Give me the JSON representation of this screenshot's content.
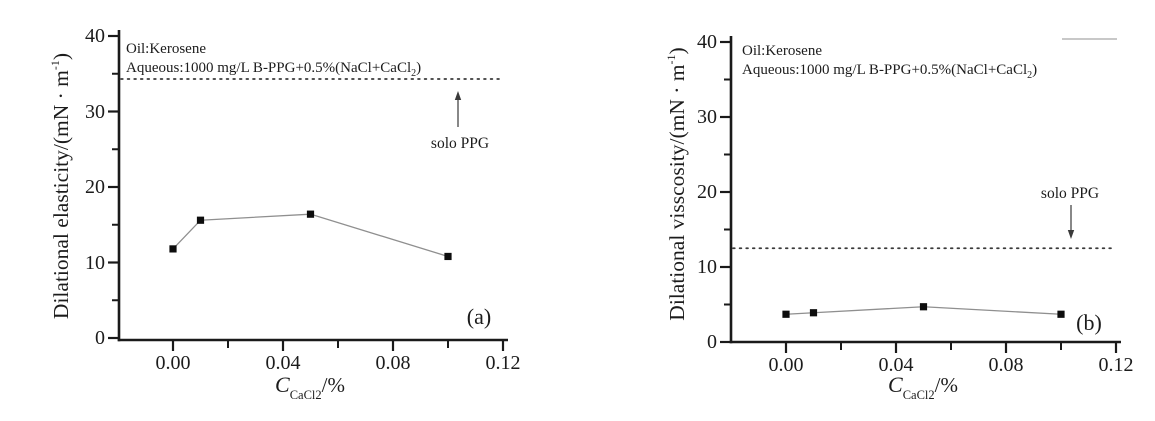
{
  "figure": {
    "background": "#ffffff",
    "colors": {
      "text": "#1c1c1c",
      "axis": "#1a1a1a",
      "series_line": "#8f8f8f",
      "marker": "#0d0d0d",
      "reference_line": "#3a3a3a",
      "legend_fragment": "#b5b5b5"
    },
    "charts": [
      {
        "panel_label": "(a)",
        "annotation_line1": "Oil:Kerosene",
        "annotation_line2_main": "Aqueous:1000 mg/L B-PPG+0.5%(NaCl+CaCl",
        "annotation_line2_sub": "2",
        "annotation_line2_end": ")",
        "ylabel_main": "Dilational elasticity/(mN · m",
        "ylabel_sup": "-1",
        "ylabel_end": ")",
        "xlabel_main": "C",
        "xlabel_sub": "CaCl2",
        "xlabel_end": "/%",
        "solo_ppg_label": "solo PPG",
        "ytick_labels": [
          "0",
          "10",
          "20",
          "30",
          "40"
        ],
        "xtick_labels": [
          "0.00",
          "0.04",
          "0.08",
          "0.12"
        ]
      },
      {
        "panel_label": "(b)",
        "annotation_line1": "Oil:Kerosene",
        "annotation_line2_main": "Aqueous:1000 mg/L B-PPG+0.5%(NaCl+CaCl",
        "annotation_line2_sub": "2",
        "annotation_line2_end": ")",
        "ylabel_main": "Dilational visscosity/(mN · m",
        "ylabel_sup": "-1",
        "ylabel_end": ")",
        "xlabel_main": "C",
        "xlabel_sub": "CaCl2",
        "xlabel_end": "/%",
        "solo_ppg_label": "solo PPG",
        "ytick_labels": [
          "0",
          "10",
          "20",
          "30",
          "40"
        ],
        "xtick_labels": [
          "0.00",
          "0.04",
          "0.08",
          "0.12"
        ]
      }
    ]
  },
  "chart_data": [
    {
      "type": "line",
      "panel": "(a)",
      "title": "",
      "xlabel": "C_CaCl2 /%",
      "ylabel": "Dilational elasticity/(mN·m^-1)",
      "series": [
        {
          "name": "1000 mg/L B-PPG+0.5%(NaCl+CaCl2)",
          "x": [
            0.0,
            0.01,
            0.05,
            0.1
          ],
          "y": [
            11.8,
            15.6,
            16.4,
            10.8
          ],
          "marker": "square"
        }
      ],
      "reference_line": {
        "label": "solo PPG",
        "value": 34.3,
        "style": "dotted"
      },
      "annotations": [
        "Oil:Kerosene",
        "Aqueous:1000 mg/L B-PPG+0.5%(NaCl+CaCl2)"
      ],
      "xlim": [
        -0.02,
        0.122
      ],
      "ylim": [
        0,
        40
      ],
      "yticks": [
        0,
        10,
        20,
        30,
        40
      ],
      "yticks_minor": [
        5,
        15,
        25,
        35
      ],
      "xticks": [
        0,
        0.04,
        0.08,
        0.12
      ],
      "xticks_minor": [
        0.02,
        0.06,
        0.1
      ],
      "grid": false,
      "legend_position": "none"
    },
    {
      "type": "line",
      "panel": "(b)",
      "title": "",
      "xlabel": "C_CaCl2 /%",
      "ylabel": "Dilational visscosity/(mN·m^-1)",
      "series": [
        {
          "name": "1000 mg/L B-PPG+0.5%(NaCl+CaCl2)",
          "x": [
            0.0,
            0.01,
            0.05,
            0.1
          ],
          "y": [
            3.7,
            3.9,
            4.7,
            3.7
          ],
          "marker": "square"
        }
      ],
      "reference_line": {
        "label": "solo PPG",
        "value": 12.5,
        "style": "dotted"
      },
      "annotations": [
        "Oil:Kerosene",
        "Aqueous:1000 mg/L B-PPG+0.5%(NaCl+CaCl2)"
      ],
      "xlim": [
        -0.02,
        0.122
      ],
      "ylim": [
        0,
        40
      ],
      "yticks": [
        0,
        10,
        20,
        30,
        40
      ],
      "yticks_minor": [
        5,
        15,
        25,
        35
      ],
      "xticks": [
        0,
        0.04,
        0.08,
        0.12
      ],
      "xticks_minor": [
        0.02,
        0.06,
        0.1
      ],
      "grid": false,
      "legend_position": "none"
    }
  ]
}
